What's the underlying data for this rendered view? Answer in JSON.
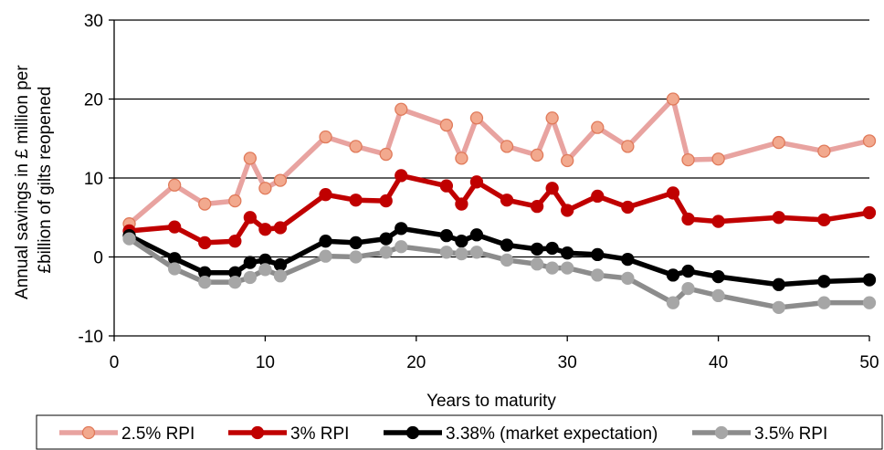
{
  "chart_data": {
    "type": "line",
    "xlabel": "Years to maturity",
    "ylabel": [
      "Annual savings in £ million per",
      "£billion of gilts reopened"
    ],
    "xlim": [
      0,
      50
    ],
    "ylim": [
      -10,
      30
    ],
    "xticks": [
      0,
      10,
      20,
      30,
      40,
      50
    ],
    "yticks": [
      -10,
      0,
      10,
      20,
      30
    ],
    "grid": "horizontal",
    "legend_position": "bottom",
    "x": [
      1,
      4,
      6,
      8,
      9,
      10,
      11,
      14,
      16,
      18,
      19,
      22,
      23,
      24,
      26,
      28,
      29,
      30,
      32,
      34,
      37,
      38,
      40,
      44,
      47,
      50
    ],
    "series": [
      {
        "name": "2.5% RPI",
        "line_color": "#e8a3a0",
        "marker_fill": "#f2a98e",
        "marker_edge": "#e07a5a",
        "values": [
          4.2,
          9.1,
          6.7,
          7.1,
          12.5,
          8.7,
          9.7,
          15.2,
          14.0,
          13.0,
          18.7,
          16.7,
          12.5,
          17.6,
          14.0,
          12.9,
          17.6,
          12.2,
          16.4,
          14.0,
          20.0,
          12.3,
          12.4,
          14.5,
          13.4,
          14.7
        ]
      },
      {
        "name": "3% RPI",
        "line_color": "#c00000",
        "marker_fill": "#c00000",
        "marker_edge": "#c00000",
        "values": [
          3.3,
          3.8,
          1.8,
          2.0,
          5.0,
          3.5,
          3.7,
          7.9,
          7.2,
          7.1,
          10.3,
          9.0,
          6.7,
          9.5,
          7.2,
          6.4,
          8.7,
          5.9,
          7.7,
          6.3,
          8.1,
          4.8,
          4.5,
          5.0,
          4.7,
          5.6
        ]
      },
      {
        "name": "3.38% (market expectation)",
        "line_color": "#000000",
        "marker_fill": "#000000",
        "marker_edge": "#000000",
        "values": [
          2.7,
          -0.2,
          -2.0,
          -2.0,
          -0.7,
          -0.4,
          -1.0,
          2.0,
          1.8,
          2.3,
          3.6,
          2.7,
          2.0,
          2.8,
          1.5,
          1.0,
          1.1,
          0.5,
          0.3,
          -0.3,
          -2.3,
          -1.8,
          -2.5,
          -3.5,
          -3.1,
          -2.9
        ]
      },
      {
        "name": "3.5% RPI",
        "line_color": "#8c8c8c",
        "marker_fill": "#a6a6a6",
        "marker_edge": "#a6a6a6",
        "values": [
          2.3,
          -1.5,
          -3.2,
          -3.2,
          -2.6,
          -1.6,
          -2.4,
          0.1,
          0.0,
          0.6,
          1.3,
          0.6,
          0.4,
          0.6,
          -0.4,
          -0.9,
          -1.4,
          -1.4,
          -2.3,
          -2.7,
          -5.8,
          -4.0,
          -4.9,
          -6.4,
          -5.8,
          -5.8
        ]
      }
    ]
  }
}
